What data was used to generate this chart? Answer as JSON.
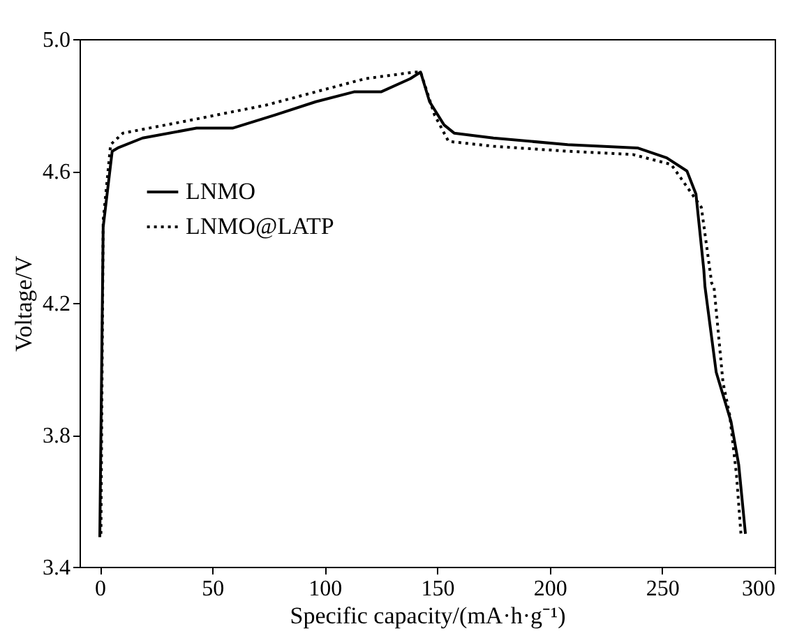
{
  "chart_data": {
    "type": "line",
    "xlabel": "Specific capacity/(mA·h·g⁻¹)",
    "ylabel": "Voltage/V",
    "xlim": [
      -9,
      300
    ],
    "ylim": [
      3.4,
      5.0
    ],
    "xticks": [
      0,
      50,
      100,
      150,
      200,
      250,
      300
    ],
    "yticks": [
      {
        "value": 3.4,
        "label": "3.4"
      },
      {
        "value": 3.8,
        "label": "3.8"
      },
      {
        "value": 4.2,
        "label": "4.2"
      },
      {
        "value": 4.6,
        "label": "4.6"
      },
      {
        "value": 5.0,
        "label": "5.0"
      }
    ],
    "grid": false,
    "legend": "top left",
    "marker": "none",
    "series": [
      {
        "name": "LNMO",
        "color": "#000000",
        "line_style": "solid",
        "x": [
          0,
          1.5,
          5.5,
          8,
          19,
          43,
          59,
          78,
          96,
          113,
          125,
          138,
          142.6,
          146.6,
          153,
          157.5,
          175,
          208,
          239,
          252,
          261,
          265,
          268.5,
          269,
          274,
          280.6,
          284,
          287
        ],
        "values": [
          3.49,
          4.43,
          4.66,
          4.67,
          4.7,
          4.73,
          4.73,
          4.77,
          4.81,
          4.84,
          4.84,
          4.88,
          4.9,
          4.81,
          4.74,
          4.715,
          4.7,
          4.68,
          4.67,
          4.64,
          4.6,
          4.53,
          4.3,
          4.25,
          3.99,
          3.84,
          3.71,
          3.5
        ]
      },
      {
        "name": "LNMO@LATP",
        "color": "#000000",
        "line_style": "dotted",
        "x": [
          0.5,
          1.5,
          4.8,
          10.3,
          41,
          74,
          96,
          118,
          140,
          142.6,
          148.8,
          155,
          175,
          208,
          237,
          254,
          267.4,
          272,
          273,
          277,
          280,
          283,
          285
        ],
        "values": [
          3.5,
          4.45,
          4.68,
          4.715,
          4.755,
          4.8,
          4.84,
          4.88,
          4.9,
          4.9,
          4.77,
          4.69,
          4.675,
          4.66,
          4.65,
          4.62,
          4.49,
          4.26,
          4.25,
          3.96,
          3.86,
          3.68,
          3.5
        ]
      }
    ]
  }
}
